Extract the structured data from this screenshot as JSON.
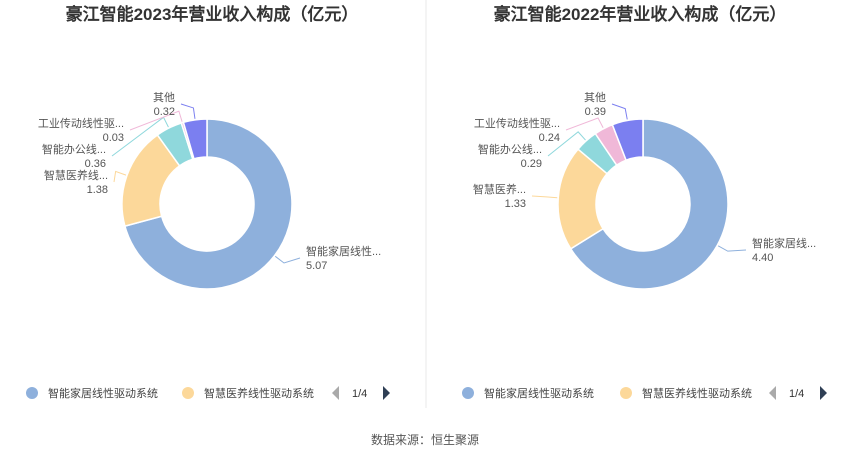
{
  "source_note": "数据来源：恒生聚源",
  "chart_data": [
    {
      "type": "pie",
      "style": "donut",
      "title": "豪江智能2023年营业收入构成（亿元）",
      "series": [
        {
          "name": "智能家居线性驱动系统",
          "label": "智能家居线性...",
          "value": 5.07,
          "value_label": "5.07",
          "color": "#8eb0dc"
        },
        {
          "name": "智慧医养线性驱动系统",
          "label": "智慧医养线...",
          "value": 1.38,
          "value_label": "1.38",
          "color": "#fcd89a"
        },
        {
          "name": "智能办公线性驱动系统",
          "label": "智能办公线...",
          "value": 0.36,
          "value_label": "0.36",
          "color": "#8fd8dc"
        },
        {
          "name": "工业传动线性驱动系统",
          "label": "工业传动线性驱...",
          "value": 0.03,
          "value_label": "0.03",
          "color": "#f0b8d8"
        },
        {
          "name": "其他",
          "label": "其他",
          "value": 0.32,
          "value_label": "0.32",
          "color": "#7b7ff0"
        }
      ],
      "legend": {
        "position": "bottom",
        "items": [
          "智能家居线性驱动系统",
          "智慧医养线性驱动系统"
        ],
        "page": "1/4"
      }
    },
    {
      "type": "pie",
      "style": "donut",
      "title": "豪江智能2022年营业收入构成（亿元）",
      "series": [
        {
          "name": "智能家居线性驱动系统",
          "label": "智能家居线...",
          "value": 4.4,
          "value_label": "4.40",
          "color": "#8eb0dc"
        },
        {
          "name": "智慧医养线性驱动系统",
          "label": "智慧医养...",
          "value": 1.33,
          "value_label": "1.33",
          "color": "#fcd89a"
        },
        {
          "name": "智能办公线性驱动系统",
          "label": "智能办公线...",
          "value": 0.29,
          "value_label": "0.29",
          "color": "#8fd8dc"
        },
        {
          "name": "工业传动线性驱动系统",
          "label": "工业传动线性驱...",
          "value": 0.24,
          "value_label": "0.24",
          "color": "#f0b8d8"
        },
        {
          "name": "其他",
          "label": "其他",
          "value": 0.39,
          "value_label": "0.39",
          "color": "#7b7ff0"
        }
      ],
      "legend": {
        "position": "bottom",
        "items": [
          "智能家居线性驱动系统",
          "智慧医养线性驱动系统"
        ],
        "page": "1/4"
      }
    }
  ]
}
